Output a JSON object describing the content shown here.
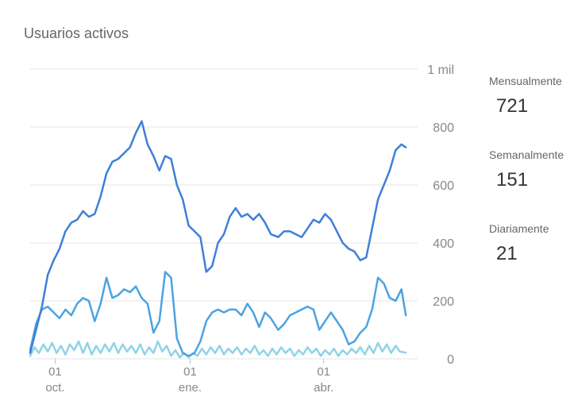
{
  "card": {
    "title": "Usuarios activos"
  },
  "legend": {
    "items": [
      {
        "label": "Mensualmente",
        "value": "721",
        "color": "#3f7fd9"
      },
      {
        "label": "Semanalmente",
        "value": "151",
        "color": "#4ba3e3"
      },
      {
        "label": "Diariamente",
        "value": "21",
        "color": "#8fd3e6"
      }
    ]
  },
  "chart_data": {
    "type": "line",
    "title": "Usuarios activos",
    "xlabel": "",
    "ylabel": "",
    "ylim": [
      0,
      1000
    ],
    "y_ticks": [
      {
        "value": 0,
        "label": "0"
      },
      {
        "value": 200,
        "label": "200"
      },
      {
        "value": 400,
        "label": "400"
      },
      {
        "value": 600,
        "label": "600"
      },
      {
        "value": 800,
        "label": "800"
      },
      {
        "value": 1000,
        "label": "1 mil"
      }
    ],
    "x_range": [
      "2019-09-14",
      "2020-06-04"
    ],
    "x_ticks": [
      {
        "date": "2019-10-01",
        "day": "01",
        "month": "oct."
      },
      {
        "date": "2020-01-01",
        "day": "01",
        "month": "ene."
      },
      {
        "date": "2020-04-01",
        "day": "01",
        "month": "abr."
      }
    ],
    "grid": true,
    "legend_position": "right",
    "series": [
      {
        "name": "Mensualmente",
        "color": "#3f7fd9",
        "points": [
          [
            "2019-09-14",
            20
          ],
          [
            "2019-09-18",
            100
          ],
          [
            "2019-09-22",
            180
          ],
          [
            "2019-09-26",
            290
          ],
          [
            "2019-09-30",
            340
          ],
          [
            "2019-10-04",
            380
          ],
          [
            "2019-10-08",
            440
          ],
          [
            "2019-10-12",
            470
          ],
          [
            "2019-10-16",
            480
          ],
          [
            "2019-10-20",
            510
          ],
          [
            "2019-10-24",
            490
          ],
          [
            "2019-10-28",
            500
          ],
          [
            "2019-11-01",
            560
          ],
          [
            "2019-11-05",
            640
          ],
          [
            "2019-11-09",
            680
          ],
          [
            "2019-11-13",
            690
          ],
          [
            "2019-11-17",
            710
          ],
          [
            "2019-11-21",
            730
          ],
          [
            "2019-11-25",
            780
          ],
          [
            "2019-11-29",
            820
          ],
          [
            "2019-12-03",
            740
          ],
          [
            "2019-12-07",
            700
          ],
          [
            "2019-12-11",
            650
          ],
          [
            "2019-12-15",
            700
          ],
          [
            "2019-12-19",
            690
          ],
          [
            "2019-12-23",
            600
          ],
          [
            "2019-12-27",
            550
          ],
          [
            "2019-12-31",
            460
          ],
          [
            "2020-01-04",
            440
          ],
          [
            "2020-01-08",
            420
          ],
          [
            "2020-01-12",
            300
          ],
          [
            "2020-01-16",
            320
          ],
          [
            "2020-01-20",
            400
          ],
          [
            "2020-01-24",
            430
          ],
          [
            "2020-01-28",
            490
          ],
          [
            "2020-02-01",
            520
          ],
          [
            "2020-02-05",
            490
          ],
          [
            "2020-02-09",
            500
          ],
          [
            "2020-02-13",
            480
          ],
          [
            "2020-02-17",
            500
          ],
          [
            "2020-02-21",
            470
          ],
          [
            "2020-02-25",
            430
          ],
          [
            "2020-03-01",
            420
          ],
          [
            "2020-03-05",
            440
          ],
          [
            "2020-03-09",
            440
          ],
          [
            "2020-03-13",
            430
          ],
          [
            "2020-03-17",
            420
          ],
          [
            "2020-03-21",
            450
          ],
          [
            "2020-03-25",
            480
          ],
          [
            "2020-03-29",
            470
          ],
          [
            "2020-04-02",
            500
          ],
          [
            "2020-04-06",
            480
          ],
          [
            "2020-04-10",
            440
          ],
          [
            "2020-04-14",
            400
          ],
          [
            "2020-04-18",
            380
          ],
          [
            "2020-04-22",
            370
          ],
          [
            "2020-04-26",
            340
          ],
          [
            "2020-04-30",
            350
          ],
          [
            "2020-05-04",
            450
          ],
          [
            "2020-05-08",
            550
          ],
          [
            "2020-05-12",
            600
          ],
          [
            "2020-05-16",
            650
          ],
          [
            "2020-05-20",
            720
          ],
          [
            "2020-05-24",
            740
          ],
          [
            "2020-05-27",
            730
          ]
        ]
      },
      {
        "name": "Semanalmente",
        "color": "#4ba3e3",
        "points": [
          [
            "2019-09-14",
            30
          ],
          [
            "2019-09-18",
            120
          ],
          [
            "2019-09-22",
            170
          ],
          [
            "2019-09-26",
            180
          ],
          [
            "2019-09-30",
            160
          ],
          [
            "2019-10-04",
            140
          ],
          [
            "2019-10-08",
            170
          ],
          [
            "2019-10-12",
            150
          ],
          [
            "2019-10-16",
            190
          ],
          [
            "2019-10-20",
            210
          ],
          [
            "2019-10-24",
            200
          ],
          [
            "2019-10-28",
            130
          ],
          [
            "2019-11-01",
            190
          ],
          [
            "2019-11-05",
            280
          ],
          [
            "2019-11-09",
            210
          ],
          [
            "2019-11-13",
            220
          ],
          [
            "2019-11-17",
            240
          ],
          [
            "2019-11-21",
            230
          ],
          [
            "2019-11-25",
            250
          ],
          [
            "2019-11-29",
            210
          ],
          [
            "2019-12-03",
            190
          ],
          [
            "2019-12-07",
            90
          ],
          [
            "2019-12-11",
            130
          ],
          [
            "2019-12-15",
            300
          ],
          [
            "2019-12-19",
            280
          ],
          [
            "2019-12-23",
            70
          ],
          [
            "2019-12-27",
            20
          ],
          [
            "2019-12-31",
            10
          ],
          [
            "2020-01-04",
            20
          ],
          [
            "2020-01-08",
            60
          ],
          [
            "2020-01-12",
            130
          ],
          [
            "2020-01-16",
            160
          ],
          [
            "2020-01-20",
            170
          ],
          [
            "2020-01-24",
            160
          ],
          [
            "2020-01-28",
            170
          ],
          [
            "2020-02-01",
            170
          ],
          [
            "2020-02-05",
            150
          ],
          [
            "2020-02-09",
            190
          ],
          [
            "2020-02-13",
            160
          ],
          [
            "2020-02-17",
            110
          ],
          [
            "2020-02-21",
            160
          ],
          [
            "2020-02-25",
            140
          ],
          [
            "2020-03-01",
            100
          ],
          [
            "2020-03-05",
            120
          ],
          [
            "2020-03-09",
            150
          ],
          [
            "2020-03-13",
            160
          ],
          [
            "2020-03-17",
            170
          ],
          [
            "2020-03-21",
            180
          ],
          [
            "2020-03-25",
            170
          ],
          [
            "2020-03-29",
            100
          ],
          [
            "2020-04-02",
            130
          ],
          [
            "2020-04-06",
            160
          ],
          [
            "2020-04-10",
            130
          ],
          [
            "2020-04-14",
            100
          ],
          [
            "2020-04-18",
            50
          ],
          [
            "2020-04-22",
            60
          ],
          [
            "2020-04-26",
            90
          ],
          [
            "2020-04-30",
            110
          ],
          [
            "2020-05-04",
            170
          ],
          [
            "2020-05-08",
            280
          ],
          [
            "2020-05-12",
            260
          ],
          [
            "2020-05-16",
            210
          ],
          [
            "2020-05-20",
            200
          ],
          [
            "2020-05-24",
            240
          ],
          [
            "2020-05-27",
            150
          ]
        ]
      },
      {
        "name": "Diariamente",
        "color": "#8fd3e6",
        "points": [
          [
            "2019-09-14",
            10
          ],
          [
            "2019-09-17",
            40
          ],
          [
            "2019-09-20",
            20
          ],
          [
            "2019-09-23",
            50
          ],
          [
            "2019-09-26",
            25
          ],
          [
            "2019-09-29",
            55
          ],
          [
            "2019-10-02",
            20
          ],
          [
            "2019-10-05",
            45
          ],
          [
            "2019-10-08",
            15
          ],
          [
            "2019-10-11",
            50
          ],
          [
            "2019-10-14",
            30
          ],
          [
            "2019-10-17",
            60
          ],
          [
            "2019-10-20",
            20
          ],
          [
            "2019-10-23",
            55
          ],
          [
            "2019-10-26",
            15
          ],
          [
            "2019-10-29",
            45
          ],
          [
            "2019-11-01",
            20
          ],
          [
            "2019-11-04",
            50
          ],
          [
            "2019-11-07",
            25
          ],
          [
            "2019-11-10",
            55
          ],
          [
            "2019-11-13",
            20
          ],
          [
            "2019-11-16",
            50
          ],
          [
            "2019-11-19",
            25
          ],
          [
            "2019-11-22",
            45
          ],
          [
            "2019-11-25",
            20
          ],
          [
            "2019-11-28",
            50
          ],
          [
            "2019-12-01",
            15
          ],
          [
            "2019-12-04",
            40
          ],
          [
            "2019-12-07",
            20
          ],
          [
            "2019-12-10",
            60
          ],
          [
            "2019-12-13",
            25
          ],
          [
            "2019-12-16",
            45
          ],
          [
            "2019-12-19",
            10
          ],
          [
            "2019-12-22",
            30
          ],
          [
            "2019-12-25",
            5
          ],
          [
            "2019-12-28",
            20
          ],
          [
            "2019-12-31",
            5
          ],
          [
            "2020-01-03",
            20
          ],
          [
            "2020-01-06",
            10
          ],
          [
            "2020-01-09",
            35
          ],
          [
            "2020-01-12",
            15
          ],
          [
            "2020-01-15",
            40
          ],
          [
            "2020-01-18",
            20
          ],
          [
            "2020-01-21",
            45
          ],
          [
            "2020-01-24",
            15
          ],
          [
            "2020-01-27",
            35
          ],
          [
            "2020-01-30",
            20
          ],
          [
            "2020-02-02",
            40
          ],
          [
            "2020-02-05",
            15
          ],
          [
            "2020-02-08",
            35
          ],
          [
            "2020-02-11",
            20
          ],
          [
            "2020-02-14",
            45
          ],
          [
            "2020-02-17",
            15
          ],
          [
            "2020-02-20",
            30
          ],
          [
            "2020-02-23",
            10
          ],
          [
            "2020-02-26",
            35
          ],
          [
            "2020-02-29",
            15
          ],
          [
            "2020-03-03",
            40
          ],
          [
            "2020-03-06",
            20
          ],
          [
            "2020-03-09",
            35
          ],
          [
            "2020-03-12",
            10
          ],
          [
            "2020-03-15",
            30
          ],
          [
            "2020-03-18",
            15
          ],
          [
            "2020-03-21",
            40
          ],
          [
            "2020-03-24",
            20
          ],
          [
            "2020-03-27",
            35
          ],
          [
            "2020-03-30",
            10
          ],
          [
            "2020-04-02",
            30
          ],
          [
            "2020-04-05",
            15
          ],
          [
            "2020-04-08",
            35
          ],
          [
            "2020-04-11",
            10
          ],
          [
            "2020-04-14",
            30
          ],
          [
            "2020-04-17",
            15
          ],
          [
            "2020-04-20",
            35
          ],
          [
            "2020-04-23",
            20
          ],
          [
            "2020-04-26",
            40
          ],
          [
            "2020-04-29",
            15
          ],
          [
            "2020-05-02",
            45
          ],
          [
            "2020-05-05",
            20
          ],
          [
            "2020-05-08",
            55
          ],
          [
            "2020-05-11",
            25
          ],
          [
            "2020-05-14",
            50
          ],
          [
            "2020-05-17",
            20
          ],
          [
            "2020-05-20",
            45
          ],
          [
            "2020-05-23",
            25
          ],
          [
            "2020-05-27",
            21
          ]
        ]
      }
    ]
  }
}
